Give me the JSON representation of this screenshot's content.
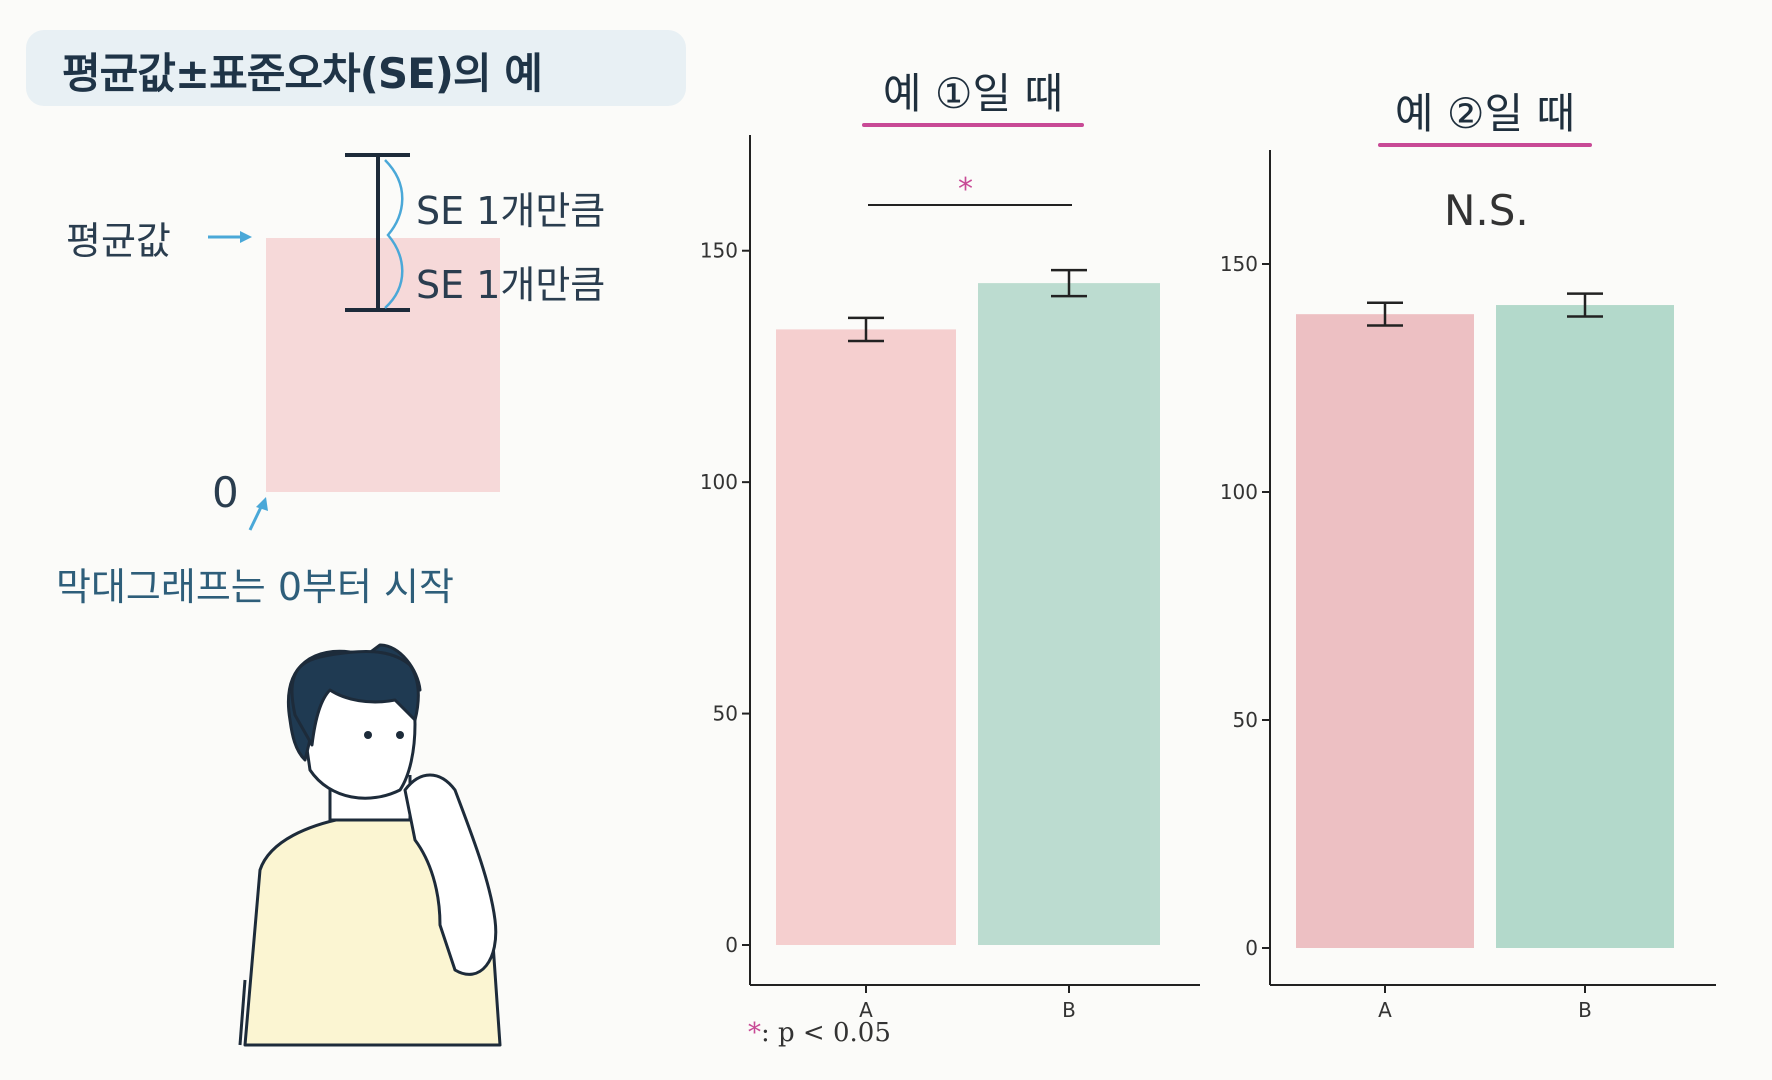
{
  "title": "평균값±표준오차(SE)의 예",
  "demo": {
    "mean_label": "평균값",
    "se_upper_label": "SE 1개만큼",
    "se_lower_label": "SE 1개만큼",
    "zero_label": "0",
    "caption": "막대그래프는 0부터 시작"
  },
  "colors": {
    "bar_a": "#f5cfcf",
    "bar_b": "#bcdcd0",
    "bar_a2": "#edc0c3",
    "bar_b2": "#b3d9cb",
    "accent": "#c84a96",
    "arrow": "#4aa8d8"
  },
  "chart_data": [
    {
      "type": "bar",
      "title": "예 ①일 때",
      "categories": [
        "A",
        "B"
      ],
      "values": [
        133,
        143
      ],
      "errors": [
        2.5,
        2.8
      ],
      "ylim": [
        0,
        175
      ],
      "yticks": [
        0,
        50,
        100,
        150
      ],
      "annotation": "*",
      "footnote_star": "*",
      "footnote_text": ": p < 0.05"
    },
    {
      "type": "bar",
      "title": "예 ②일 때",
      "categories": [
        "A",
        "B"
      ],
      "values": [
        139,
        141
      ],
      "errors": [
        2.5,
        2.5
      ],
      "ylim": [
        0,
        175
      ],
      "yticks": [
        0,
        50,
        100,
        150
      ],
      "annotation": "N.S."
    }
  ]
}
